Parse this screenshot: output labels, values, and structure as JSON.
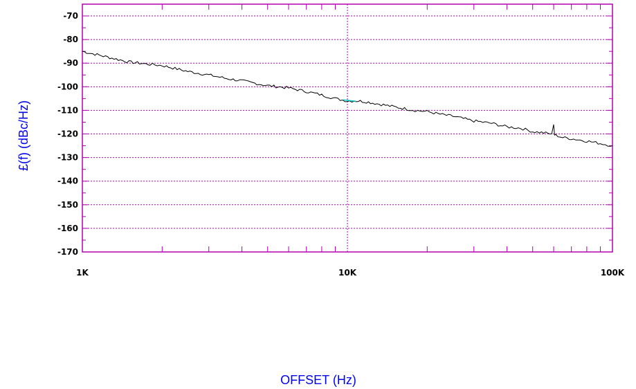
{
  "chart_data": {
    "type": "line",
    "title": "",
    "xlabel": "OFFSET (Hz)",
    "ylabel": "£(f) (dBc/Hz)",
    "x_scale": "log",
    "xlim": [
      1000,
      100000
    ],
    "ylim": [
      -170,
      -65
    ],
    "x_ticks": [
      {
        "value": 1000,
        "label": "1K"
      },
      {
        "value": 10000,
        "label": "10K"
      },
      {
        "value": 100000,
        "label": "100K"
      }
    ],
    "y_ticks": [
      {
        "value": -70,
        "label": "-70"
      },
      {
        "value": -80,
        "label": "-80"
      },
      {
        "value": -90,
        "label": "-90"
      },
      {
        "value": -100,
        "label": "-100"
      },
      {
        "value": -110,
        "label": "-110"
      },
      {
        "value": -120,
        "label": "-120"
      },
      {
        "value": -130,
        "label": "-130"
      },
      {
        "value": -140,
        "label": "-140"
      },
      {
        "value": -150,
        "label": "-150"
      },
      {
        "value": -160,
        "label": "-160"
      },
      {
        "value": -170,
        "label": "-170"
      }
    ],
    "grid": true,
    "colors": {
      "frame": "#b000b0",
      "grid": "#b000b0",
      "trace": "#000000",
      "marker": "#00c8c8",
      "axis_title": "#0000ee"
    },
    "series": [
      {
        "x": [
          1000,
          1200,
          1500,
          1800,
          2000,
          2500,
          3000,
          3500,
          4000,
          5000,
          6000,
          7000,
          8000,
          9000,
          10000,
          11000,
          12000,
          15000,
          18000,
          20000,
          22000,
          25000,
          30000,
          35000,
          40000,
          45000,
          50000,
          55000,
          59000,
          60000,
          60500,
          61000,
          65000,
          70000,
          80000,
          90000,
          100000
        ],
        "y": [
          -85,
          -87,
          -89.5,
          -90.5,
          -91,
          -93.5,
          -95,
          -96.5,
          -97.5,
          -99.5,
          -100.5,
          -102,
          -103.5,
          -105,
          -106,
          -106,
          -106.5,
          -108.5,
          -110,
          -110.5,
          -111.5,
          -112.5,
          -114.5,
          -115.5,
          -117,
          -117.5,
          -119,
          -119.5,
          -120,
          -116,
          -120.5,
          -120.5,
          -121.5,
          -122,
          -123,
          -124,
          -125
        ]
      }
    ],
    "marker": {
      "x": 10000,
      "y": -106
    }
  }
}
